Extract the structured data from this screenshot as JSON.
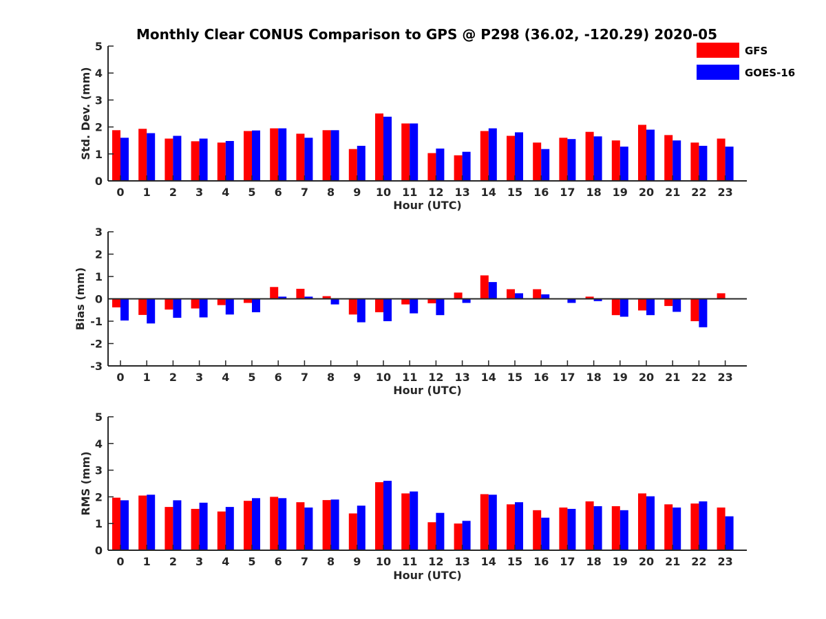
{
  "title": "Monthly Clear CONUS Comparison to GPS @ P298 (36.02, -120.29) 2020-05",
  "colors": {
    "gfs": "#ff0000",
    "goes": "#0000ff",
    "axis": "#262626"
  },
  "legend": {
    "items": [
      {
        "label": "GFS",
        "color": "#ff0000"
      },
      {
        "label": "GOES-16",
        "color": "#0000ff"
      }
    ],
    "position": "top-right"
  },
  "chart_data": [
    {
      "type": "bar",
      "title": "Monthly Clear CONUS Comparison to GPS @ P298 (36.02, -120.29) 2020-05",
      "xlabel": "Hour (UTC)",
      "ylabel": "Std. Dev. (mm)",
      "ylim": [
        0,
        5
      ],
      "yticks": [
        0,
        1,
        2,
        3,
        4,
        5
      ],
      "categories": [
        "0",
        "1",
        "2",
        "3",
        "4",
        "5",
        "6",
        "7",
        "8",
        "9",
        "10",
        "11",
        "12",
        "13",
        "14",
        "15",
        "16",
        "17",
        "18",
        "19",
        "20",
        "21",
        "22",
        "23"
      ],
      "series": [
        {
          "name": "GFS",
          "values": [
            1.88,
            1.93,
            1.57,
            1.47,
            1.42,
            1.85,
            1.95,
            1.75,
            1.88,
            1.18,
            2.5,
            2.13,
            1.03,
            0.95,
            1.85,
            1.67,
            1.42,
            1.6,
            1.82,
            1.5,
            2.08,
            1.7,
            1.42,
            1.57
          ]
        },
        {
          "name": "GOES-16",
          "values": [
            1.6,
            1.77,
            1.67,
            1.57,
            1.48,
            1.87,
            1.95,
            1.6,
            1.88,
            1.3,
            2.38,
            2.13,
            1.2,
            1.08,
            1.95,
            1.8,
            1.18,
            1.55,
            1.65,
            1.27,
            1.9,
            1.5,
            1.3,
            1.27
          ]
        }
      ]
    },
    {
      "type": "bar",
      "xlabel": "Hour (UTC)",
      "ylabel": "Bias (mm)",
      "ylim": [
        -3,
        3
      ],
      "yticks": [
        -3,
        -2,
        -1,
        0,
        1,
        2,
        3
      ],
      "categories": [
        "0",
        "1",
        "2",
        "3",
        "4",
        "5",
        "6",
        "7",
        "8",
        "9",
        "10",
        "11",
        "12",
        "13",
        "14",
        "15",
        "16",
        "17",
        "18",
        "19",
        "20",
        "21",
        "22",
        "23"
      ],
      "series": [
        {
          "name": "GFS",
          "values": [
            -0.38,
            -0.72,
            -0.48,
            -0.43,
            -0.28,
            -0.18,
            0.53,
            0.45,
            0.12,
            -0.7,
            -0.6,
            -0.25,
            -0.2,
            0.28,
            1.05,
            0.43,
            0.43,
            -0.03,
            0.1,
            -0.73,
            -0.52,
            -0.32,
            -1.0,
            0.25
          ]
        },
        {
          "name": "GOES-16",
          "values": [
            -0.97,
            -1.1,
            -0.85,
            -0.83,
            -0.7,
            -0.6,
            0.1,
            0.1,
            -0.25,
            -1.05,
            -1.0,
            -0.65,
            -0.73,
            -0.18,
            0.75,
            0.25,
            0.2,
            -0.18,
            -0.1,
            -0.8,
            -0.73,
            -0.58,
            -1.27,
            0.0
          ]
        }
      ]
    },
    {
      "type": "bar",
      "xlabel": "Hour (UTC)",
      "ylabel": "RMS (mm)",
      "ylim": [
        0,
        5
      ],
      "yticks": [
        0,
        1,
        2,
        3,
        4,
        5
      ],
      "categories": [
        "0",
        "1",
        "2",
        "3",
        "4",
        "5",
        "6",
        "7",
        "8",
        "9",
        "10",
        "11",
        "12",
        "13",
        "14",
        "15",
        "16",
        "17",
        "18",
        "19",
        "20",
        "21",
        "22",
        "23"
      ],
      "series": [
        {
          "name": "GFS",
          "values": [
            1.97,
            2.05,
            1.62,
            1.55,
            1.45,
            1.85,
            2.0,
            1.8,
            1.88,
            1.38,
            2.55,
            2.13,
            1.05,
            1.0,
            2.1,
            1.72,
            1.5,
            1.6,
            1.83,
            1.65,
            2.13,
            1.72,
            1.75,
            1.6
          ]
        },
        {
          "name": "GOES-16",
          "values": [
            1.87,
            2.08,
            1.87,
            1.78,
            1.62,
            1.95,
            1.95,
            1.6,
            1.9,
            1.67,
            2.6,
            2.2,
            1.4,
            1.1,
            2.08,
            1.8,
            1.22,
            1.55,
            1.65,
            1.5,
            2.02,
            1.6,
            1.83,
            1.27
          ]
        }
      ]
    }
  ]
}
